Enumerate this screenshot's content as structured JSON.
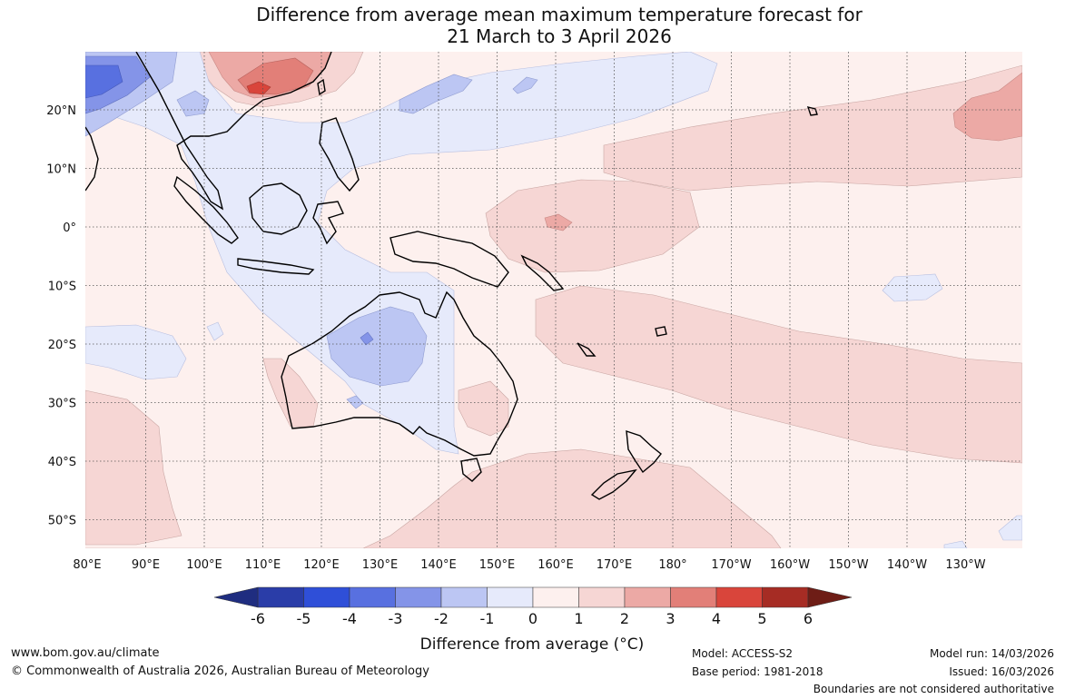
{
  "title": {
    "line1": "Difference from average mean maximum temperature forecast for",
    "line2": "21 March to 3 April 2026"
  },
  "axes": {
    "lon_labels": [
      "80°E",
      "90°E",
      "100°E",
      "110°E",
      "120°E",
      "130°E",
      "140°E",
      "150°E",
      "160°E",
      "170°E",
      "180°",
      "170°W",
      "160°W",
      "150°W",
      "140°W",
      "130°W"
    ],
    "lat_labels": [
      "20°N",
      "10°N",
      "0°",
      "10°S",
      "20°S",
      "30°S",
      "40°S",
      "50°S"
    ]
  },
  "colorbar": {
    "ticks": [
      "-6",
      "-5",
      "-4",
      "-3",
      "-2",
      "-1",
      "0",
      "1",
      "2",
      "3",
      "4",
      "5",
      "6"
    ],
    "colors": [
      "#2a3da8",
      "#2f4fd8",
      "#5870e0",
      "#8494e8",
      "#bcc6f3",
      "#e6eafb",
      "#fdf0ee",
      "#f6d6d4",
      "#eca9a5",
      "#e27f78",
      "#d9453b",
      "#a62c24"
    ],
    "low_color": "#1f2d80",
    "high_color": "#6e1d16",
    "title": "Difference from average (°C)"
  },
  "footer": {
    "website": "www.bom.gov.au/climate",
    "copyright": "© Commonwealth of Australia 2026, Australian Bureau of Meteorology",
    "model": "Model: ACCESS-S2",
    "base_period": "Base period: 1981-2018",
    "model_run": "Model run: 14/03/2026",
    "issued": "Issued: 16/03/2026",
    "boundaries": "Boundaries are not considered authoritative"
  }
}
